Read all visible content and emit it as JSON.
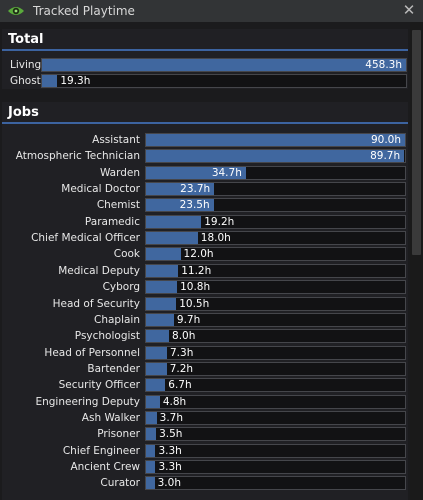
{
  "window": {
    "title": "Tracked Playtime"
  },
  "total": {
    "header": "Total",
    "max_hours": 458.3,
    "rows": [
      {
        "label": "Living",
        "hours": 458.3,
        "value": "458.3h"
      },
      {
        "label": "Ghost",
        "hours": 19.3,
        "value": "19.3h"
      }
    ]
  },
  "jobs": {
    "header": "Jobs",
    "max_hours": 90.0,
    "rows": [
      {
        "label": "Assistant",
        "hours": 90.0,
        "value": "90.0h"
      },
      {
        "label": "Atmospheric Technician",
        "hours": 89.7,
        "value": "89.7h"
      },
      {
        "label": "Warden",
        "hours": 34.7,
        "value": "34.7h"
      },
      {
        "label": "Medical Doctor",
        "hours": 23.7,
        "value": "23.7h"
      },
      {
        "label": "Chemist",
        "hours": 23.5,
        "value": "23.5h"
      },
      {
        "label": "Paramedic",
        "hours": 19.2,
        "value": "19.2h"
      },
      {
        "label": "Chief Medical Officer",
        "hours": 18.0,
        "value": "18.0h"
      },
      {
        "label": "Cook",
        "hours": 12.0,
        "value": "12.0h"
      },
      {
        "label": "Medical Deputy",
        "hours": 11.2,
        "value": "11.2h"
      },
      {
        "label": "Cyborg",
        "hours": 10.8,
        "value": "10.8h"
      },
      {
        "label": "Head of Security",
        "hours": 10.5,
        "value": "10.5h"
      },
      {
        "label": "Chaplain",
        "hours": 9.7,
        "value": "9.7h"
      },
      {
        "label": "Psychologist",
        "hours": 8.0,
        "value": "8.0h"
      },
      {
        "label": "Head of Personnel",
        "hours": 7.3,
        "value": "7.3h"
      },
      {
        "label": "Bartender",
        "hours": 7.2,
        "value": "7.2h"
      },
      {
        "label": "Security Officer",
        "hours": 6.7,
        "value": "6.7h"
      },
      {
        "label": "Engineering Deputy",
        "hours": 4.8,
        "value": "4.8h"
      },
      {
        "label": "Ash Walker",
        "hours": 3.7,
        "value": "3.7h"
      },
      {
        "label": "Prisoner",
        "hours": 3.5,
        "value": "3.5h"
      },
      {
        "label": "Chief Engineer",
        "hours": 3.3,
        "value": "3.3h"
      },
      {
        "label": "Ancient Crew",
        "hours": 3.3,
        "value": "3.3h"
      },
      {
        "label": "Curator",
        "hours": 3.0,
        "value": "3.0h"
      }
    ]
  },
  "colors": {
    "bar_fill": "#40679f",
    "accent": "#3c63a0",
    "eye": "#5aaa3c"
  }
}
